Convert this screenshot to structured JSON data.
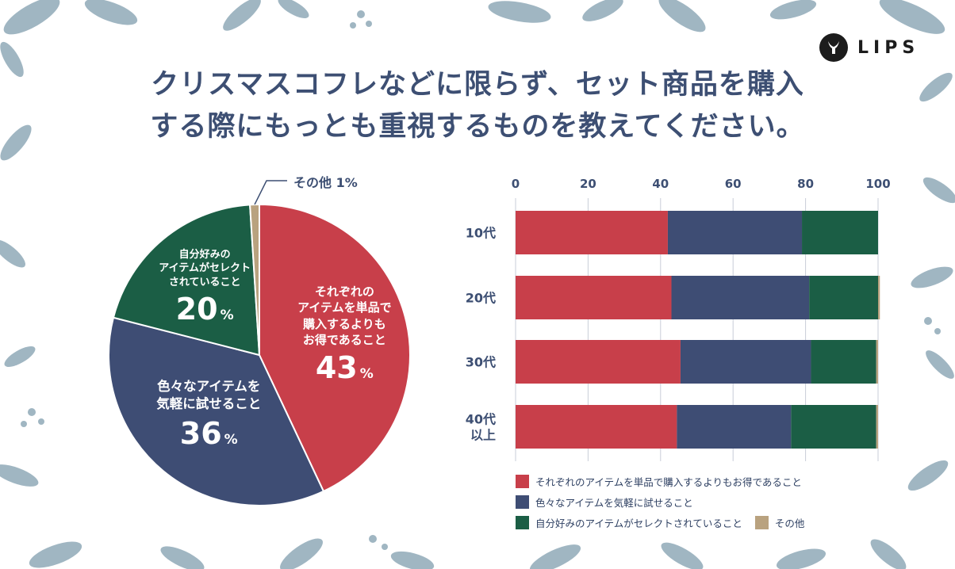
{
  "header": {
    "title_line1": "クリスマスコフレなどに限らず、セット商品を購入",
    "title_line2": "する際にもっとも重視するものを教えてください。",
    "brand": "LIPS"
  },
  "colors": {
    "red": "#c83f4a",
    "navy": "#3e4d74",
    "green": "#1b5e45",
    "tan": "#b9a27f",
    "leaf": "#8fa9b8"
  },
  "pie": {
    "slices": [
      {
        "label_lines": [
          "それぞれの",
          "アイテムを単品で",
          "購入するよりも",
          "お得であること"
        ],
        "value": 43,
        "pct_text": "43",
        "pct_sign": "%"
      },
      {
        "label_lines": [
          "色々なアイテムを",
          "気軽に試せること"
        ],
        "value": 36,
        "pct_text": "36",
        "pct_sign": "%"
      },
      {
        "label_lines": [
          "自分好みの",
          "アイテムがセレクト",
          "されていること"
        ],
        "value": 20,
        "pct_text": "20",
        "pct_sign": "%"
      },
      {
        "label_lines": [
          "その他"
        ],
        "value": 1,
        "pct_text": "1",
        "pct_sign": "%"
      }
    ],
    "other_label": "その他 1%"
  },
  "chart_data": [
    {
      "type": "pie",
      "title": "",
      "categories": [
        "それぞれのアイテムを単品で購入するよりもお得であること",
        "色々なアイテムを気軽に試せること",
        "自分好みのアイテムがセレクトされていること",
        "その他"
      ],
      "values": [
        43,
        36,
        20,
        1
      ]
    },
    {
      "type": "bar",
      "orientation": "horizontal",
      "stacked": true,
      "categories": [
        "10代",
        "20代",
        "30代",
        "40代\n以上"
      ],
      "series": [
        {
          "name": "それぞれのアイテムを単品で購入するよりもお得であること",
          "values": [
            42,
            43,
            45.5,
            44.5
          ]
        },
        {
          "name": "色々なアイテムを気軽に試せること",
          "values": [
            37,
            38,
            36,
            31.5
          ]
        },
        {
          "name": "自分好みのアイテムがセレクトされていること",
          "values": [
            21,
            19,
            18,
            23.5
          ]
        },
        {
          "name": "その他",
          "values": [
            0,
            0.5,
            0.5,
            0.5
          ]
        }
      ],
      "xlim": [
        0,
        100
      ],
      "xticks": [
        "0",
        "20",
        "40",
        "60",
        "80",
        "100"
      ],
      "grid": true,
      "legend": "bottom"
    }
  ]
}
